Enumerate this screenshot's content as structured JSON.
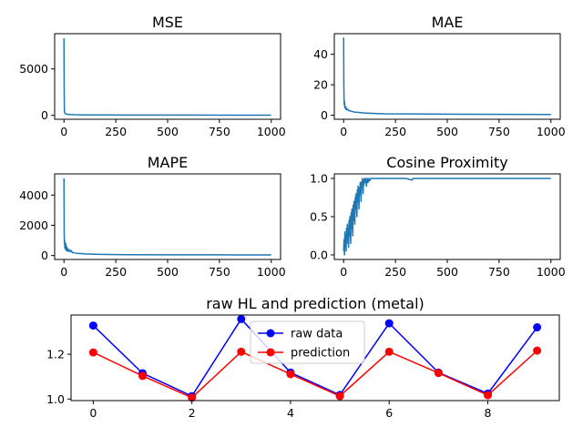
{
  "colors": {
    "metric_line": "#1f77b4",
    "raw_data": "#0000ff",
    "prediction": "#ff0000",
    "axes": "#000000",
    "background": "#ffffff"
  },
  "chart_data": [
    {
      "type": "line",
      "title": "MSE",
      "xlabel": "",
      "ylabel": "",
      "xlim": [
        -45,
        1045
      ],
      "ylim": [
        -420,
        8800
      ],
      "xticks": [
        0,
        250,
        500,
        750,
        1000
      ],
      "xtick_labels": [
        "0",
        "250",
        "500",
        "750",
        "1000"
      ],
      "yticks": [
        0,
        5000
      ],
      "ytick_labels": [
        "0",
        "5000"
      ],
      "grid": false,
      "series": [
        {
          "x": [
            0,
            1,
            2,
            3,
            4,
            6,
            8,
            10,
            15,
            20,
            30,
            50,
            100,
            200,
            400,
            600,
            800,
            1000
          ],
          "y": [
            8300,
            2500,
            700,
            300,
            250,
            200,
            180,
            150,
            120,
            110,
            90,
            70,
            50,
            40,
            30,
            28,
            25,
            22
          ]
        }
      ]
    },
    {
      "type": "line",
      "title": "MAE",
      "xlabel": "",
      "ylabel": "",
      "xlim": [
        -45,
        1045
      ],
      "ylim": [
        -2.6,
        53.5
      ],
      "xticks": [
        0,
        250,
        500,
        750,
        1000
      ],
      "xtick_labels": [
        "0",
        "250",
        "500",
        "750",
        "1000"
      ],
      "yticks": [
        0,
        20,
        40
      ],
      "ytick_labels": [
        "0",
        "20",
        "40"
      ],
      "grid": false,
      "series": [
        {
          "x": [
            0,
            1,
            2,
            3,
            4,
            5,
            6,
            8,
            10,
            12,
            15,
            20,
            25,
            30,
            40,
            50,
            60,
            80,
            100,
            150,
            200,
            300,
            400,
            600,
            800,
            1000
          ],
          "y": [
            51,
            20,
            10,
            7,
            9,
            6,
            5,
            6,
            4,
            5,
            3.5,
            4,
            3,
            3,
            2.5,
            2.2,
            2,
            1.8,
            1.5,
            1.2,
            1,
            0.9,
            0.8,
            0.7,
            0.6,
            0.5
          ]
        }
      ]
    },
    {
      "type": "line",
      "title": "MAPE",
      "xlabel": "",
      "ylabel": "",
      "xlim": [
        -45,
        1045
      ],
      "ylim": [
        -260,
        5400
      ],
      "xticks": [
        0,
        250,
        500,
        750,
        1000
      ],
      "xtick_labels": [
        "0",
        "250",
        "500",
        "750",
        "1000"
      ],
      "yticks": [
        0,
        2000,
        4000
      ],
      "ytick_labels": [
        "0",
        "2000",
        "4000"
      ],
      "grid": false,
      "series": [
        {
          "x": [
            0,
            1,
            2,
            3,
            4,
            5,
            6,
            8,
            10,
            12,
            14,
            16,
            20,
            25,
            30,
            35,
            40,
            50,
            60,
            80,
            100,
            150,
            200,
            300,
            500,
            750,
            1000
          ],
          "y": [
            5100,
            1500,
            800,
            1000,
            500,
            700,
            450,
            800,
            350,
            600,
            300,
            500,
            280,
            400,
            250,
            330,
            200,
            180,
            150,
            130,
            110,
            90,
            70,
            60,
            50,
            45,
            40
          ]
        }
      ]
    },
    {
      "type": "line",
      "title": "Cosine Proximity",
      "xlabel": "",
      "ylabel": "",
      "xlim": [
        -45,
        1045
      ],
      "ylim": [
        -0.06,
        1.06
      ],
      "xticks": [
        0,
        250,
        500,
        750,
        1000
      ],
      "xtick_labels": [
        "0",
        "250",
        "500",
        "750",
        "1000"
      ],
      "yticks": [
        0,
        0.5,
        1
      ],
      "ytick_labels": [
        "0.0",
        "0.5",
        "1.0"
      ],
      "grid": false,
      "series": [
        {
          "x": [
            0,
            2,
            4,
            6,
            8,
            10,
            12,
            14,
            16,
            18,
            20,
            22,
            24,
            26,
            28,
            30,
            32,
            34,
            36,
            38,
            40,
            42,
            44,
            46,
            48,
            50,
            52,
            54,
            56,
            58,
            60,
            62,
            64,
            66,
            68,
            70,
            72,
            74,
            76,
            78,
            80,
            82,
            84,
            86,
            88,
            90,
            92,
            94,
            96,
            98,
            100,
            103,
            106,
            110,
            114,
            118,
            122,
            126,
            130,
            150,
            200,
            300,
            330,
            335,
            400,
            600,
            800,
            1000
          ],
          "y": [
            0.05,
            0.2,
            0.0,
            0.3,
            0.1,
            0.25,
            0.05,
            0.35,
            0.15,
            0.4,
            0.2,
            0.3,
            0.1,
            0.45,
            0.25,
            0.5,
            0.3,
            0.15,
            0.55,
            0.35,
            0.6,
            0.4,
            0.25,
            0.65,
            0.45,
            0.7,
            0.55,
            0.4,
            0.75,
            0.6,
            0.8,
            0.65,
            0.5,
            0.85,
            0.7,
            0.9,
            0.75,
            0.6,
            0.88,
            0.8,
            0.95,
            0.85,
            0.7,
            0.95,
            0.9,
            1.0,
            0.9,
            0.8,
            0.98,
            0.92,
            1.0,
            0.95,
            1.0,
            0.9,
            1.0,
            0.95,
            1.0,
            0.97,
            1.0,
            1.0,
            1.0,
            1.0,
            0.98,
            1.0,
            1.0,
            1.0,
            1.0,
            1.0
          ]
        }
      ]
    },
    {
      "type": "line",
      "title": "raw HL and prediction (metal)",
      "xlabel": "",
      "ylabel": "",
      "xlim": [
        -0.45,
        9.45
      ],
      "ylim": [
        0.993,
        1.375
      ],
      "xticks": [
        0,
        2,
        4,
        6,
        8
      ],
      "xtick_labels": [
        "0",
        "2",
        "4",
        "6",
        "8"
      ],
      "yticks": [
        1.0,
        1.2
      ],
      "ytick_labels": [
        "1.0",
        "1.2"
      ],
      "grid": false,
      "legend": "upper center",
      "categories": [
        0,
        1,
        2,
        3,
        4,
        5,
        6,
        7,
        8,
        9
      ],
      "series": [
        {
          "name": "raw data",
          "values": [
            1.328,
            1.115,
            1.013,
            1.357,
            1.118,
            1.018,
            1.338,
            1.118,
            1.024,
            1.32
          ]
        },
        {
          "name": "prediction",
          "values": [
            1.208,
            1.103,
            1.006,
            1.211,
            1.111,
            1.013,
            1.211,
            1.116,
            1.017,
            1.216
          ]
        }
      ]
    }
  ]
}
